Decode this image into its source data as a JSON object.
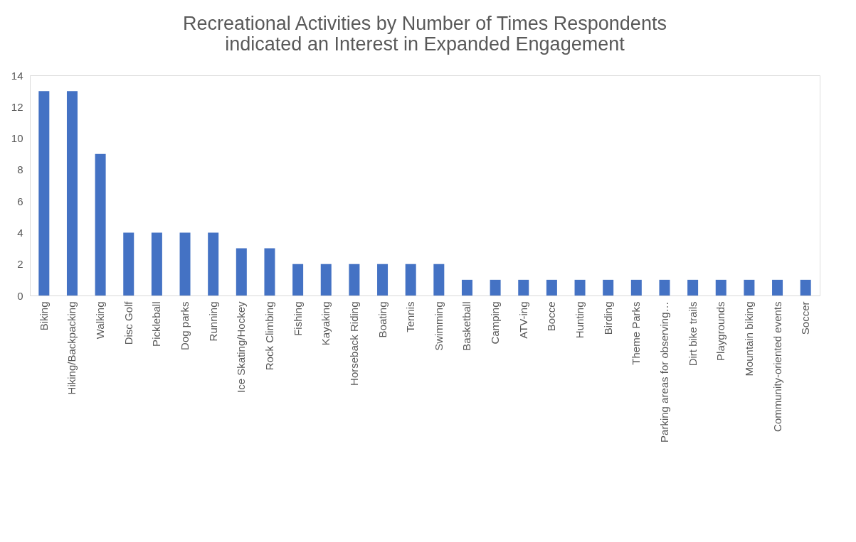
{
  "chart_data": {
    "type": "bar",
    "title": "Recreational Activities by Number of Times Respondents\nindicated an Interest in Expanded Engagement",
    "categories": [
      "Biking",
      "Hiking/Backpacking",
      "Walking",
      "Disc Golf",
      "Pickleball",
      "Dog parks",
      "Running",
      "Ice Skating/Hockey",
      "Rock Climbing",
      "Fishing",
      "Kayaking",
      "Horseback Riding",
      "Boating",
      "Tennis",
      "Swimming",
      "Basketball",
      "Camping",
      "ATV-ing",
      "Bocce",
      "Hunting",
      "Birding",
      "Theme Parks",
      "Parking areas for observing…",
      "Dirt bike trails",
      "Playgrounds",
      "Mountain biking",
      "Community-oriented events",
      "Soccer"
    ],
    "values": [
      13,
      13,
      9,
      4,
      4,
      4,
      4,
      3,
      3,
      2,
      2,
      2,
      2,
      2,
      2,
      1,
      1,
      1,
      1,
      1,
      1,
      1,
      1,
      1,
      1,
      1,
      1,
      1
    ],
    "color": "#4472c4",
    "ylim": [
      0,
      14
    ],
    "yticks": [
      0,
      2,
      4,
      6,
      8,
      10,
      12,
      14
    ],
    "grid": false,
    "legend": false
  }
}
